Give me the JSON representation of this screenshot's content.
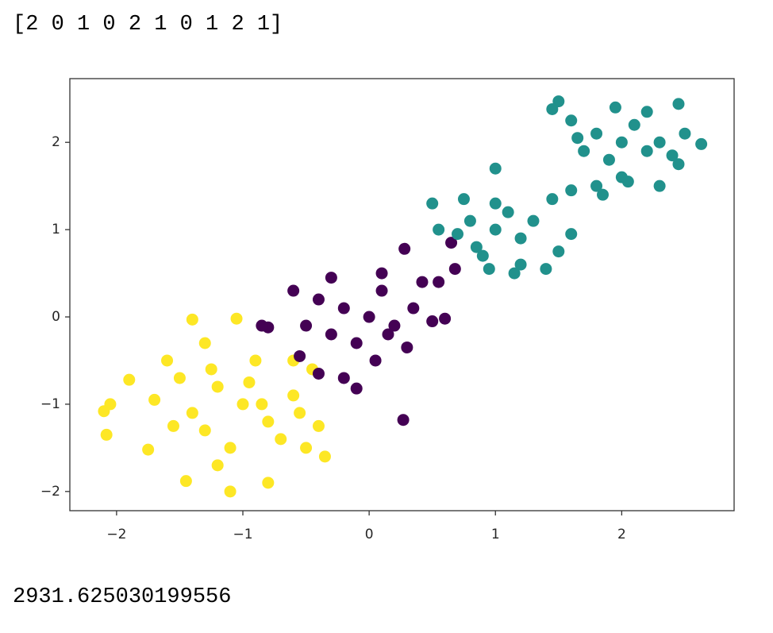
{
  "outputs": [
    "[2 0 1 0 2 1 0 1 2 1]",
    "2931.625030199556"
  ],
  "chart_data": {
    "type": "scatter",
    "xlim": [
      -2.37,
      2.89
    ],
    "ylim": [
      -2.22,
      2.73
    ],
    "xticks": [
      {
        "value": -2,
        "label": "−2"
      },
      {
        "value": -1,
        "label": "−1"
      },
      0,
      1,
      2
    ],
    "yticks": [
      {
        "value": -2,
        "label": "−2"
      },
      {
        "value": -1,
        "label": "−1"
      },
      0,
      1,
      2
    ],
    "series": [
      {
        "color": "#fde725",
        "x": [
          -1.0,
          -1.2,
          -0.8,
          -1.4,
          -0.6,
          -1.1,
          -0.9,
          -1.5,
          -0.7,
          -1.3,
          -2.05,
          -2.1,
          -2.08,
          -1.9,
          -1.75,
          -1.45,
          -1.1,
          -0.8,
          -0.35,
          -0.4,
          -0.45,
          -0.6,
          -1.4,
          -1.05,
          -1.3,
          -1.6,
          -1.2,
          -0.55,
          -0.95,
          -1.25,
          -0.5,
          -1.55,
          -0.85,
          -1.7
        ],
        "y": [
          -1.0,
          -0.8,
          -1.2,
          -1.1,
          -0.9,
          -1.5,
          -0.5,
          -0.7,
          -1.4,
          -1.3,
          -1.0,
          -1.08,
          -1.35,
          -0.72,
          -1.52,
          -1.88,
          -2.0,
          -1.9,
          -1.6,
          -1.25,
          -0.6,
          -0.5,
          -0.03,
          -0.02,
          -0.3,
          -0.5,
          -1.7,
          -1.1,
          -0.75,
          -0.6,
          -1.5,
          -1.25,
          -1.0,
          -0.95
        ]
      },
      {
        "color": "#440154",
        "x": [
          0,
          -0.2,
          0.2,
          -0.1,
          0.1,
          -0.4,
          0.35,
          -0.3,
          0.3,
          -0.6,
          -0.8,
          -0.85,
          -0.55,
          -0.4,
          -0.2,
          0.05,
          0.27,
          -0.1,
          0.28,
          0.42,
          0.55,
          0.5,
          0.6,
          0.65,
          0.68,
          -0.3,
          0.1,
          -0.5,
          0.15
        ],
        "y": [
          0,
          0.1,
          -0.1,
          -0.3,
          0.3,
          0.2,
          0.1,
          -0.2,
          -0.35,
          0.3,
          -0.12,
          -0.1,
          -0.45,
          -0.65,
          -0.7,
          -0.5,
          -1.18,
          -0.82,
          0.78,
          0.4,
          0.4,
          -0.05,
          -0.02,
          0.85,
          0.55,
          0.45,
          0.5,
          -0.1,
          -0.2
        ]
      },
      {
        "color": "#21918c",
        "x": [
          1,
          0.8,
          1.2,
          1.0,
          0.9,
          1.1,
          1.3,
          0.7,
          1.2,
          0.95,
          0.5,
          0.55,
          1.0,
          1.5,
          1.6,
          1.4,
          1.45,
          1.15,
          0.75,
          0.85,
          2,
          1.8,
          2.2,
          1.9,
          2.1,
          2.3,
          1.7,
          2.0,
          1.5,
          1.45,
          1.6,
          2.45,
          2.63,
          2.45,
          2.3,
          1.6,
          1.8,
          1.85,
          2.2,
          1.65,
          2.5,
          2.05,
          1.95,
          2.4
        ],
        "y": [
          1,
          1.1,
          0.9,
          1.3,
          0.7,
          1.2,
          1.1,
          0.95,
          0.6,
          0.55,
          1.3,
          1.0,
          1.7,
          0.75,
          0.95,
          0.55,
          1.35,
          0.5,
          1.35,
          0.8,
          2,
          2.1,
          1.9,
          1.8,
          2.2,
          2.0,
          1.9,
          1.6,
          2.47,
          2.38,
          2.25,
          2.44,
          1.98,
          1.75,
          1.5,
          1.45,
          1.5,
          1.4,
          2.35,
          2.05,
          2.1,
          1.55,
          2.4,
          1.85
        ]
      }
    ]
  }
}
